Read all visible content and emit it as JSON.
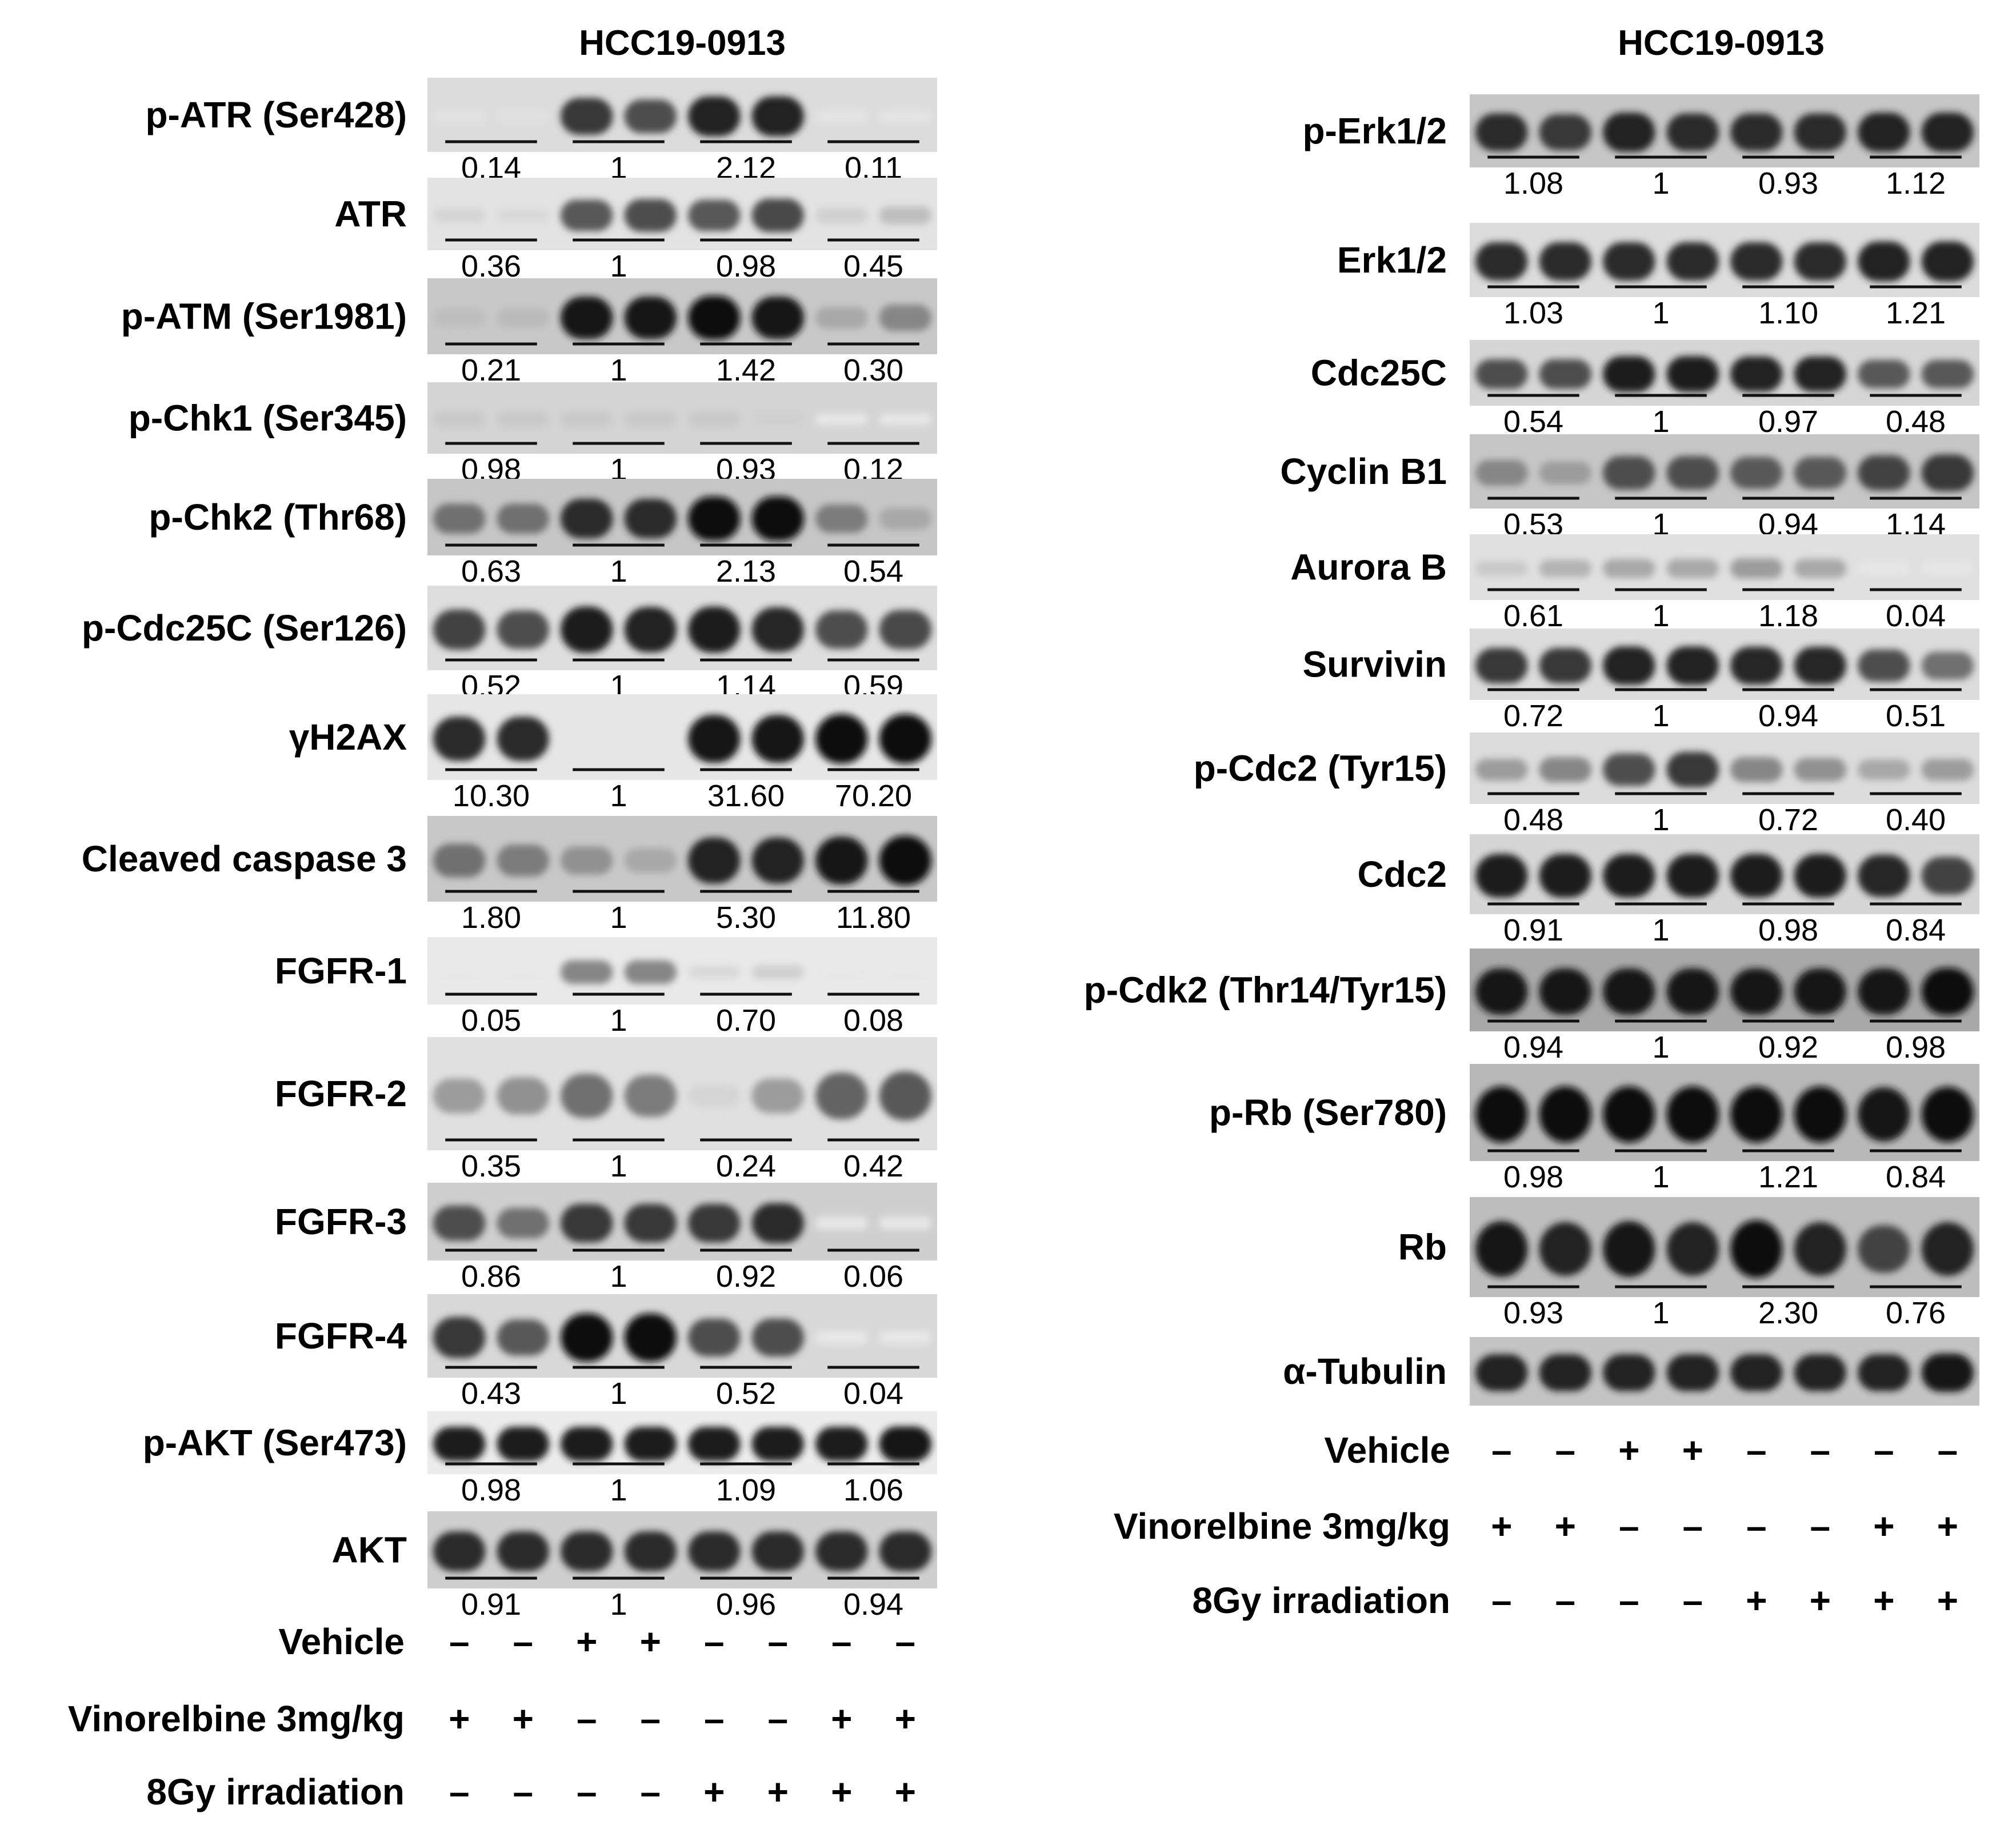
{
  "figure": {
    "panels": [
      {
        "id": "left",
        "title": "HCC19-0913",
        "blots": [
          {
            "label": "p-ATR (Ser428)",
            "quant": [
              "0.14",
              "1",
              "2.12",
              "0.11"
            ],
            "intensity": [
              0.04,
              0.05,
              0.8,
              0.7,
              0.9,
              0.9,
              0.03,
              0.03
            ],
            "bg": "#dcdcdc"
          },
          {
            "label": "ATR",
            "quant": [
              "0.36",
              "1",
              "0.98",
              "0.45"
            ],
            "intensity": [
              0.1,
              0.08,
              0.65,
              0.7,
              0.65,
              0.72,
              0.12,
              0.2
            ],
            "bg": "#e3e3e3"
          },
          {
            "label": "p-ATM (Ser1981)",
            "quant": [
              "0.21",
              "1",
              "1.42",
              "0.30"
            ],
            "intensity": [
              0.2,
              0.22,
              0.95,
              0.95,
              1.0,
              0.95,
              0.3,
              0.45
            ],
            "bg": "#c8c8c8"
          },
          {
            "label": "p-Chk1 (Ser345)",
            "quant": [
              "0.98",
              "1",
              "0.93",
              "0.12"
            ],
            "intensity": [
              0.15,
              0.15,
              0.15,
              0.15,
              0.15,
              0.12,
              0.02,
              0.02
            ],
            "bg": "#d4d4d4"
          },
          {
            "label": "p-Chk2 (Thr68)",
            "quant": [
              "0.63",
              "1",
              "2.13",
              "0.54"
            ],
            "intensity": [
              0.55,
              0.55,
              0.85,
              0.85,
              1.0,
              1.0,
              0.5,
              0.3
            ],
            "bg": "#c6c6c6"
          },
          {
            "label": "p-Cdc25C (Ser126)",
            "quant": [
              "0.52",
              "1",
              "1.14",
              "0.59"
            ],
            "intensity": [
              0.75,
              0.7,
              0.92,
              0.9,
              0.92,
              0.88,
              0.7,
              0.72
            ],
            "bg": "#dedede"
          },
          {
            "label": "γH2AX",
            "quant": [
              "10.30",
              "1",
              "31.60",
              "70.20"
            ],
            "intensity": [
              0.85,
              0.85,
              0.0,
              0.0,
              0.95,
              0.95,
              1.0,
              1.0
            ],
            "bg": "#e6e6e6"
          },
          {
            "label": "Cleaved caspase 3",
            "quant": [
              "1.80",
              "1",
              "5.30",
              "11.80"
            ],
            "intensity": [
              0.55,
              0.5,
              0.4,
              0.3,
              0.9,
              0.9,
              0.95,
              1.0
            ],
            "bg": "#c8c8c8"
          },
          {
            "label": "FGFR-1",
            "quant": [
              "0.05",
              "1",
              "0.70",
              "0.08"
            ],
            "intensity": [
              0.02,
              0.02,
              0.45,
              0.45,
              0.08,
              0.12,
              0.02,
              0.02
            ],
            "bg": "#e9e9e9"
          },
          {
            "label": "FGFR-2",
            "quant": [
              "0.35",
              "1",
              "0.24",
              "0.42"
            ],
            "intensity": [
              0.35,
              0.4,
              0.55,
              0.5,
              0.1,
              0.35,
              0.6,
              0.65
            ],
            "bg": "#e0e0e0"
          },
          {
            "label": "FGFR-3",
            "quant": [
              "0.86",
              "1",
              "0.92",
              "0.06"
            ],
            "intensity": [
              0.7,
              0.55,
              0.8,
              0.8,
              0.8,
              0.85,
              0.02,
              0.02
            ],
            "bg": "#cfcfcf"
          },
          {
            "label": "FGFR-4",
            "quant": [
              "0.43",
              "1",
              "0.52",
              "0.04"
            ],
            "intensity": [
              0.8,
              0.65,
              1.0,
              1.0,
              0.7,
              0.7,
              0.02,
              0.02
            ],
            "bg": "#d8d8d8"
          },
          {
            "label": "p-AKT (Ser473)",
            "quant": [
              "0.98",
              "1",
              "1.09",
              "1.06"
            ],
            "intensity": [
              0.92,
              0.92,
              0.92,
              0.92,
              0.92,
              0.92,
              0.92,
              0.95
            ],
            "bg": "#ececec"
          },
          {
            "label": "AKT",
            "quant": [
              "0.91",
              "1",
              "0.96",
              "0.94"
            ],
            "intensity": [
              0.85,
              0.85,
              0.85,
              0.85,
              0.85,
              0.85,
              0.85,
              0.85
            ],
            "bg": "#cfcfcf"
          }
        ],
        "conditions": [
          {
            "label": "Vehicle",
            "signs": [
              "–",
              "–",
              "+",
              "+",
              "–",
              "–",
              "–",
              "–"
            ]
          },
          {
            "label": "Vinorelbine 3mg/kg",
            "signs": [
              "+",
              "+",
              "–",
              "–",
              "–",
              "–",
              "+",
              "+"
            ]
          },
          {
            "label": "8Gy irradiation",
            "signs": [
              "–",
              "–",
              "–",
              "–",
              "+",
              "+",
              "+",
              "+"
            ]
          }
        ]
      },
      {
        "id": "right",
        "title": "HCC19-0913",
        "blots": [
          {
            "label": "p-Erk1/2",
            "quant": [
              "1.08",
              "1",
              "0.93",
              "1.12"
            ],
            "intensity": [
              0.85,
              0.8,
              0.9,
              0.85,
              0.85,
              0.85,
              0.9,
              0.9
            ],
            "bg": "#c6c6c6"
          },
          {
            "label": "Erk1/2",
            "quant": [
              "1.03",
              "1",
              "1.10",
              "1.21"
            ],
            "intensity": [
              0.85,
              0.85,
              0.85,
              0.85,
              0.85,
              0.85,
              0.9,
              0.9
            ],
            "bg": "#dcdcdc"
          },
          {
            "label": "Cdc25C",
            "quant": [
              "0.54",
              "1",
              "0.97",
              "0.48"
            ],
            "intensity": [
              0.7,
              0.7,
              0.92,
              0.92,
              0.9,
              0.9,
              0.65,
              0.65
            ],
            "bg": "#d6d6d6"
          },
          {
            "label": "Cyclin B1",
            "quant": [
              "0.53",
              "1",
              "0.94",
              "1.14"
            ],
            "intensity": [
              0.45,
              0.35,
              0.7,
              0.7,
              0.65,
              0.65,
              0.75,
              0.8
            ],
            "bg": "#c6c6c6"
          },
          {
            "label": "Aurora B",
            "quant": [
              "0.61",
              "1",
              "1.18",
              "0.04"
            ],
            "intensity": [
              0.15,
              0.25,
              0.3,
              0.3,
              0.35,
              0.3,
              0.02,
              0.02
            ],
            "bg": "#e0e0e0"
          },
          {
            "label": "Survivin",
            "quant": [
              "0.72",
              "1",
              "0.94",
              "0.51"
            ],
            "intensity": [
              0.8,
              0.8,
              0.9,
              0.9,
              0.88,
              0.88,
              0.7,
              0.55
            ],
            "bg": "#dcdcdc"
          },
          {
            "label": "p-Cdc2 (Tyr15)",
            "quant": [
              "0.48",
              "1",
              "0.72",
              "0.40"
            ],
            "intensity": [
              0.35,
              0.45,
              0.7,
              0.8,
              0.45,
              0.4,
              0.3,
              0.35
            ],
            "bg": "#dcdcdc"
          },
          {
            "label": "Cdc2",
            "quant": [
              "0.91",
              "1",
              "0.98",
              "0.84"
            ],
            "intensity": [
              0.92,
              0.92,
              0.92,
              0.92,
              0.92,
              0.92,
              0.88,
              0.75
            ],
            "bg": "#d6d6d6"
          },
          {
            "label": "p-Cdk2 (Thr14/Tyr15)",
            "quant": [
              "0.94",
              "1",
              "0.92",
              "0.98"
            ],
            "intensity": [
              0.95,
              0.95,
              0.95,
              0.95,
              0.95,
              0.95,
              0.95,
              0.98
            ],
            "bg": "#a8a8a8"
          },
          {
            "label": "p-Rb (Ser780)",
            "quant": [
              "0.98",
              "1",
              "1.21",
              "0.84"
            ],
            "intensity": [
              1.0,
              1.0,
              1.0,
              1.0,
              1.0,
              1.0,
              0.95,
              0.98
            ],
            "bg": "#b8b8b8"
          },
          {
            "label": "Rb",
            "quant": [
              "0.93",
              "1",
              "2.30",
              "0.76"
            ],
            "intensity": [
              0.95,
              0.9,
              0.95,
              0.9,
              1.0,
              0.9,
              0.75,
              0.9
            ],
            "bg": "#bdbdbd"
          },
          {
            "label": "α-Tubulin",
            "quant": [],
            "intensity": [
              0.9,
              0.9,
              0.9,
              0.9,
              0.9,
              0.9,
              0.9,
              0.95
            ],
            "bg": "#c4c4c4"
          }
        ],
        "conditions": [
          {
            "label": "Vehicle",
            "signs": [
              "–",
              "–",
              "+",
              "+",
              "–",
              "–",
              "–",
              "–"
            ]
          },
          {
            "label": "Vinorelbine 3mg/kg",
            "signs": [
              "+",
              "+",
              "–",
              "–",
              "–",
              "–",
              "+",
              "+"
            ]
          },
          {
            "label": "8Gy irradiation",
            "signs": [
              "–",
              "–",
              "–",
              "–",
              "+",
              "+",
              "+",
              "+"
            ]
          }
        ]
      }
    ]
  }
}
